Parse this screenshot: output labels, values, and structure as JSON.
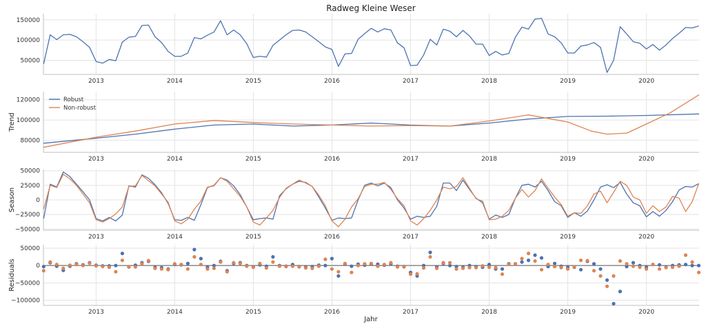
{
  "figure": {
    "title": "Radweg Kleine Weser",
    "xlabel": "Jahr"
  },
  "colors": {
    "robust": "#4c72b0",
    "nonrobust": "#dd8452",
    "grid": "#e3e3e3",
    "axis": "#bfbfbf"
  },
  "chart_data": [
    {
      "type": "line",
      "panel": "observed",
      "ylabel": "",
      "ylim": [
        15000,
        165000
      ],
      "yticks": [
        50000,
        100000,
        150000
      ],
      "ytick_labels": [
        "50000",
        "100000",
        "150000"
      ],
      "xlim": [
        2012.33,
        2020.67
      ],
      "xticks": [
        2013,
        2014,
        2015,
        2016,
        2017,
        2018,
        2019,
        2020
      ],
      "xtick_labels": [
        "2013",
        "2014",
        "2015",
        "2016",
        "2017",
        "2018",
        "2019",
        "2020"
      ],
      "x_start": 2012.333,
      "x_step": 0.08333,
      "series": [
        {
          "name": "",
          "color_key": "robust",
          "values": [
            41000,
            113000,
            101000,
            113000,
            114000,
            108000,
            96000,
            82000,
            47000,
            43000,
            52000,
            49000,
            95000,
            107000,
            109000,
            136000,
            137000,
            108000,
            94000,
            72000,
            60000,
            60000,
            68000,
            106000,
            103000,
            112000,
            120000,
            148000,
            113000,
            125000,
            113000,
            91000,
            57000,
            60000,
            58000,
            87000,
            100000,
            113000,
            124000,
            125000,
            120000,
            108000,
            96000,
            83000,
            77000,
            35000,
            66000,
            67000,
            102000,
            116000,
            129000,
            120000,
            128000,
            125000,
            93000,
            81000,
            37000,
            38000,
            63000,
            102000,
            88000,
            127000,
            122000,
            108000,
            124000,
            110000,
            90000,
            90000,
            62000,
            72000,
            63000,
            67000,
            107000,
            132000,
            127000,
            152000,
            154000,
            115000,
            108000,
            93000,
            68000,
            68000,
            85000,
            88000,
            94000,
            82000,
            20000,
            50000,
            133000,
            115000,
            96000,
            92000,
            78000,
            89000,
            75000,
            88000,
            104000,
            117000,
            131000,
            130000,
            135000
          ]
        }
      ]
    },
    {
      "type": "line",
      "panel": "trend",
      "ylabel": "Trend",
      "ylim": [
        68000,
        128000
      ],
      "yticks": [
        80000,
        100000,
        120000
      ],
      "ytick_labels": [
        "80000",
        "100000",
        "120000"
      ],
      "xlim": [
        2012.33,
        2020.67
      ],
      "xticks": [
        2013,
        2014,
        2015,
        2016,
        2017,
        2018,
        2019,
        2020
      ],
      "xtick_labels": [
        "2013",
        "2014",
        "2015",
        "2016",
        "2017",
        "2018",
        "2019",
        "2020"
      ],
      "legend": "upper-left",
      "series": [
        {
          "name": "Robust",
          "color_key": "robust",
          "x": [
            2012.33,
            2013,
            2013.5,
            2014,
            2014.5,
            2015,
            2015.5,
            2016,
            2016.5,
            2017,
            2017.5,
            2018,
            2018.5,
            2019,
            2019.5,
            2020,
            2020.67
          ],
          "values": [
            77000,
            82000,
            86000,
            91000,
            95000,
            96000,
            94000,
            95000,
            97000,
            95000,
            94000,
            97000,
            101000,
            103500,
            103800,
            104500,
            106000
          ]
        },
        {
          "name": "Non-robust",
          "color_key": "nonrobust",
          "x": [
            2012.33,
            2013,
            2013.5,
            2014,
            2014.5,
            2015,
            2015.5,
            2016,
            2016.5,
            2017,
            2017.5,
            2018,
            2018.5,
            2019,
            2019.3,
            2019.5,
            2019.75,
            2020,
            2020.3,
            2020.67
          ],
          "values": [
            73000,
            83000,
            89000,
            96000,
            99500,
            97500,
            96000,
            95000,
            94000,
            94500,
            94000,
            99000,
            105000,
            98000,
            89000,
            86000,
            87000,
            96000,
            107000,
            125000
          ]
        }
      ]
    },
    {
      "type": "line",
      "panel": "season",
      "ylabel": "Season",
      "ylim": [
        -52000,
        52000
      ],
      "yticks": [
        -50000,
        -25000,
        0,
        25000,
        50000
      ],
      "ytick_labels": [
        "−50000",
        "−25000",
        "0",
        "25000",
        "50000"
      ],
      "xlim": [
        2012.33,
        2020.67
      ],
      "xticks": [
        2013,
        2014,
        2015,
        2016,
        2017,
        2018,
        2019,
        2020
      ],
      "xtick_labels": [
        "2013",
        "2014",
        "2015",
        "2016",
        "2017",
        "2018",
        "2019",
        "2020"
      ],
      "x_start": 2012.333,
      "x_step": 0.08333,
      "series": [
        {
          "name": "Robust",
          "color_key": "robust",
          "values": [
            -32000,
            27000,
            22000,
            48000,
            40000,
            27000,
            14000,
            0,
            -32000,
            -36000,
            -30000,
            -36000,
            -26000,
            24000,
            22000,
            43000,
            37000,
            26000,
            12000,
            -6000,
            -34000,
            -35000,
            -30000,
            -35000,
            -8000,
            21000,
            25000,
            38000,
            34000,
            24000,
            9000,
            -12000,
            -34000,
            -32000,
            -31000,
            -33000,
            7000,
            19000,
            27000,
            32000,
            30000,
            23000,
            5000,
            -14000,
            -35000,
            -31000,
            -32000,
            -31000,
            0,
            25000,
            29000,
            24000,
            29000,
            21000,
            0,
            -14000,
            -33000,
            -28000,
            -30000,
            -28000,
            -11000,
            29000,
            29000,
            16000,
            34000,
            18000,
            3000,
            -5000,
            -33000,
            -26000,
            -30000,
            -25000,
            3000,
            25000,
            27000,
            22000,
            32000,
            16000,
            -3000,
            -10000,
            -30000,
            -22000,
            -28000,
            -19000,
            0,
            22000,
            26000,
            21000,
            30000,
            10000,
            -5000,
            -10000,
            -29000,
            -20000,
            -28000,
            -18000,
            -3000,
            17000,
            23000,
            22000,
            28000
          ]
        },
        {
          "name": "Non-robust",
          "color_key": "nonrobust",
          "values": [
            -16000,
            25000,
            21000,
            44000,
            36000,
            25000,
            10000,
            -5000,
            -34000,
            -38000,
            -32000,
            -24000,
            -12000,
            23000,
            24000,
            42000,
            33000,
            24000,
            10000,
            -4000,
            -36000,
            -41000,
            -33000,
            -16000,
            -2000,
            22000,
            24000,
            38000,
            32000,
            19000,
            6000,
            -12000,
            -38000,
            -43000,
            -31000,
            -18000,
            4000,
            20000,
            27000,
            34000,
            29000,
            23000,
            8000,
            -10000,
            -36000,
            -46000,
            -33000,
            -12000,
            2000,
            23000,
            27000,
            27000,
            30000,
            18000,
            2000,
            -10000,
            -36000,
            -43000,
            -32000,
            -18000,
            0,
            22000,
            19000,
            23000,
            38000,
            20000,
            2000,
            -2000,
            -34000,
            -33000,
            -28000,
            -18000,
            3000,
            18000,
            5000,
            16000,
            36000,
            20000,
            5000,
            -8000,
            -28000,
            -22000,
            -23000,
            -10000,
            10000,
            15000,
            -5000,
            13000,
            32000,
            25000,
            5000,
            0,
            -23000,
            -10000,
            -20000,
            -12000,
            6000,
            3000,
            -20000,
            -3000,
            28000
          ]
        }
      ]
    },
    {
      "type": "scatter",
      "panel": "residuals",
      "ylabel": "Residuals",
      "ylim": [
        -115000,
        60000
      ],
      "yticks": [
        -100000,
        -50000,
        0,
        50000
      ],
      "ytick_labels": [
        "−100000",
        "−50000",
        "0",
        "50000"
      ],
      "xlim": [
        2012.33,
        2020.67
      ],
      "xticks": [
        2013,
        2014,
        2015,
        2016,
        2017,
        2018,
        2019,
        2020
      ],
      "xtick_labels": [
        "2013",
        "2014",
        "2015",
        "2016",
        "2017",
        "2018",
        "2019",
        "2020"
      ],
      "zero_line": true,
      "x_start": 2012.333,
      "x_step": 0.08333,
      "series": [
        {
          "name": "Robust",
          "color_key": "robust",
          "values": [
            -3000,
            8000,
            -2000,
            -14000,
            -2000,
            5000,
            2000,
            8000,
            1000,
            -1000,
            -1000,
            0,
            35000,
            -4000,
            1000,
            8000,
            12000,
            -5000,
            -6000,
            -10000,
            3000,
            2000,
            6000,
            46000,
            20000,
            -5000,
            0,
            12000,
            -15000,
            6000,
            8000,
            0,
            -4000,
            2000,
            -2000,
            25000,
            0,
            -2000,
            3000,
            -3000,
            -5000,
            -3000,
            1000,
            0,
            20000,
            -30000,
            4000,
            -2000,
            4000,
            1000,
            4000,
            4000,
            1000,
            5000,
            -2000,
            -3000,
            -20000,
            -30000,
            0,
            38000,
            -4000,
            6000,
            0,
            -3000,
            -5000,
            0,
            -3000,
            -5000,
            3000,
            -10000,
            -10000,
            5000,
            5000,
            10000,
            15000,
            30000,
            22000,
            -3000,
            6000,
            -2000,
            -5000,
            -5000,
            -12000,
            12000,
            5000,
            -10000,
            -42000,
            -110000,
            -75000,
            -3000,
            8000,
            0,
            -5000,
            3000,
            2000,
            -5000,
            0,
            2000,
            3000,
            0,
            0
          ]
        },
        {
          "name": "Non-robust",
          "color_key": "nonrobust",
          "values": [
            -15000,
            10000,
            3000,
            -8000,
            1000,
            3000,
            0,
            7000,
            -1000,
            -3000,
            -5000,
            -18000,
            15000,
            -3000,
            -4000,
            5000,
            14000,
            -8000,
            -10000,
            -12000,
            5000,
            3000,
            -10000,
            25000,
            3000,
            -10000,
            -8000,
            10000,
            -18000,
            8000,
            6000,
            -2000,
            -5000,
            6000,
            -7000,
            10000,
            -2000,
            -3000,
            -2000,
            -4000,
            -7000,
            -8000,
            -2000,
            18000,
            -10000,
            -18000,
            6000,
            -20000,
            0,
            5000,
            6000,
            -2000,
            3000,
            8000,
            -4000,
            -4000,
            -25000,
            -24000,
            -7000,
            25000,
            -8000,
            8000,
            8000,
            -10000,
            -8000,
            -6000,
            -6000,
            -1000,
            -5000,
            -6000,
            -25000,
            3000,
            5000,
            20000,
            35000,
            13000,
            -12000,
            3000,
            -3000,
            -6000,
            -10000,
            -4000,
            15000,
            14000,
            -15000,
            -30000,
            -60000,
            -30000,
            13000,
            5000,
            -2000,
            -5000,
            -10000,
            3000,
            -10000,
            -6000,
            -5000,
            -2000,
            30000,
            10000,
            -20000
          ]
        }
      ]
    }
  ]
}
